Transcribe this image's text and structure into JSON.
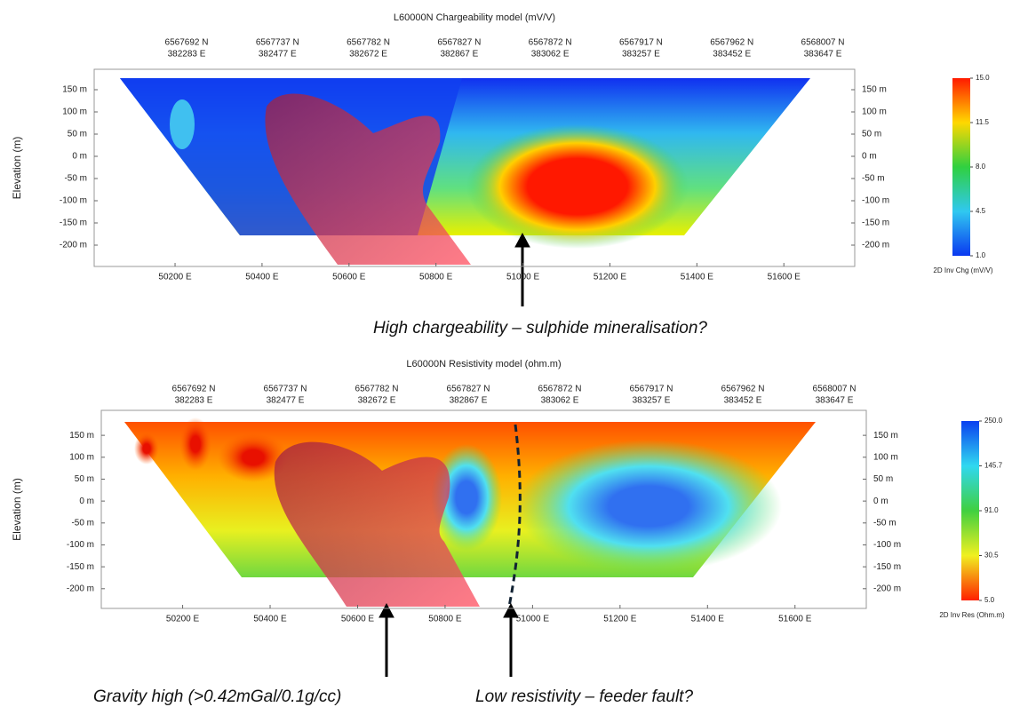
{
  "chart_data": [
    {
      "type": "contour",
      "title": "L60000N Chargeability model (mV/V)",
      "y_label": "Elevation (m)",
      "top_labels": [
        [
          "6567692 N",
          "382283 E"
        ],
        [
          "6567737 N",
          "382477 E"
        ],
        [
          "6567782 N",
          "382672 E"
        ],
        [
          "6567827 N",
          "382867 E"
        ],
        [
          "6567872 N",
          "383062 E"
        ],
        [
          "6567917 N",
          "383257 E"
        ],
        [
          "6567962 N",
          "383452 E"
        ],
        [
          "6568007 N",
          "383647 E"
        ]
      ],
      "xlim": [
        50014,
        51763
      ],
      "xticks": [
        {
          "value": 50200,
          "label": "50200 E"
        },
        {
          "value": 50400,
          "label": "50400 E"
        },
        {
          "value": 50600,
          "label": "50600 E"
        },
        {
          "value": 50800,
          "label": "50800 E"
        },
        {
          "value": 51000,
          "label": "51000 E"
        },
        {
          "value": 51200,
          "label": "51200 E"
        },
        {
          "value": 51400,
          "label": "51400 E"
        },
        {
          "value": 51600,
          "label": "51600 E"
        }
      ],
      "ylim": [
        -248,
        196
      ],
      "yticks": [
        {
          "value": 150,
          "label": "150 m"
        },
        {
          "value": 100,
          "label": "100 m"
        },
        {
          "value": 50,
          "label": "50 m"
        },
        {
          "value": 0,
          "label": "0 m"
        },
        {
          "value": -50,
          "label": "-50 m"
        },
        {
          "value": -100,
          "label": "-100 m"
        },
        {
          "value": -150,
          "label": "-150 m"
        },
        {
          "value": -200,
          "label": "-200 m"
        }
      ],
      "colorbar_label": "2D Inv Chg (mV/V)",
      "colorbar_ticks": [
        {
          "value": 15,
          "label": "15.0"
        },
        {
          "value": 11.5,
          "label": "11.5"
        },
        {
          "value": 8,
          "label": "8.0"
        },
        {
          "value": 4.5,
          "label": "4.5"
        },
        {
          "value": 1,
          "label": "1.0"
        }
      ],
      "colormap": [
        "#ff1a00",
        "#ffd800",
        "#30d040",
        "#30c8f0",
        "#0a38f0"
      ],
      "annotations": [
        "High chargeability – sulphide mineralisation?"
      ]
    },
    {
      "type": "contour",
      "title": "L60000N Resistivity model (ohm.m)",
      "y_label": "Elevation (m)",
      "top_labels": [
        [
          "6567692 N",
          "382283 E"
        ],
        [
          "6567737 N",
          "382477 E"
        ],
        [
          "6567782 N",
          "382672 E"
        ],
        [
          "6567827 N",
          "382867 E"
        ],
        [
          "6567872 N",
          "383062 E"
        ],
        [
          "6567917 N",
          "383257 E"
        ],
        [
          "6567962 N",
          "383452 E"
        ],
        [
          "6568007 N",
          "383647 E"
        ]
      ],
      "xlim": [
        50014,
        51763
      ],
      "xticks": [
        {
          "value": 50200,
          "label": "50200 E"
        },
        {
          "value": 50400,
          "label": "50400 E"
        },
        {
          "value": 50600,
          "label": "50600 E"
        },
        {
          "value": 50800,
          "label": "50800 E"
        },
        {
          "value": 51000,
          "label": "51000 E"
        },
        {
          "value": 51200,
          "label": "51200 E"
        },
        {
          "value": 51400,
          "label": "51400 E"
        },
        {
          "value": 51600,
          "label": "51600 E"
        }
      ],
      "ylim": [
        -245,
        207
      ],
      "yticks": [
        {
          "value": 150,
          "label": "150 m"
        },
        {
          "value": 100,
          "label": "100 m"
        },
        {
          "value": 50,
          "label": "50 m"
        },
        {
          "value": 0,
          "label": "0 m"
        },
        {
          "value": -50,
          "label": "-50 m"
        },
        {
          "value": -100,
          "label": "-100 m"
        },
        {
          "value": -150,
          "label": "-150 m"
        },
        {
          "value": -200,
          "label": "-200 m"
        }
      ],
      "colorbar_label": "2D Inv Res (Ohm.m)",
      "colorbar_ticks": [
        {
          "value": 250,
          "label": "250.0"
        },
        {
          "value": 145.7,
          "label": "145.7"
        },
        {
          "value": 91,
          "label": "91.0"
        },
        {
          "value": 30.5,
          "label": "30.5"
        },
        {
          "value": 5,
          "label": "5.0"
        }
      ],
      "colormap": [
        "#0a40f0",
        "#30d8f0",
        "#40d040",
        "#f0f020",
        "#ff2000"
      ],
      "annotations": [
        "Gravity high (>0.42mGal/0.1g/cc)",
        "Low resistivity – feeder fault?"
      ]
    }
  ]
}
